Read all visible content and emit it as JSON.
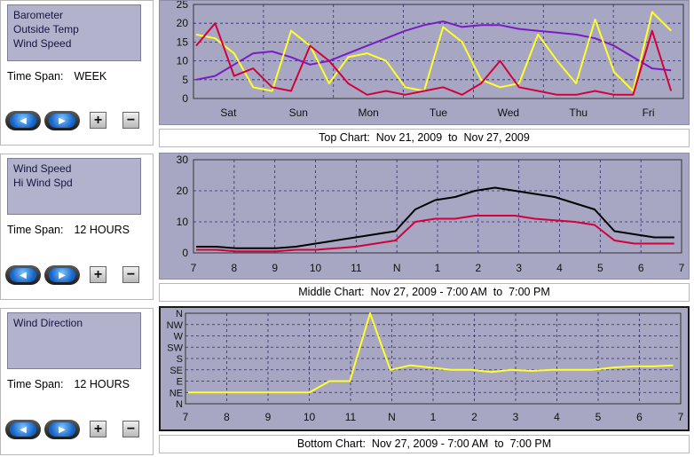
{
  "panels": [
    {
      "series": [
        "Barometer",
        "Outside Temp",
        "Wind Speed"
      ],
      "time_span_label": "Time Span:",
      "time_span_value": "WEEK",
      "caption": "Top Chart:  Nov 21, 2009  to  Nov 27, 2009"
    },
    {
      "series": [
        "Wind Speed",
        "Hi Wind Spd"
      ],
      "time_span_label": "Time Span:",
      "time_span_value": "12 HOURS",
      "caption": "Middle Chart:  Nov 27, 2009 - 7:00 AM  to  7:00 PM"
    },
    {
      "series": [
        "Wind Direction"
      ],
      "time_span_label": "Time Span:",
      "time_span_value": "12 HOURS",
      "caption": "Bottom Chart:  Nov 27, 2009 - 7:00 AM  to  7:00 PM"
    }
  ],
  "controls": {
    "plus": "+",
    "minus": "−"
  },
  "icons": [
    "back-arrow-icon",
    "forward-arrow-icon"
  ],
  "colors": {
    "plot_bg": "#a7a7c3",
    "barometer": "#7a1bc4",
    "outside_temp": "#ffff2a",
    "wind_speed": "#d3003c",
    "hi_wind_spd": "#000000",
    "wind_direction": "#ffff2a"
  },
  "chart_data": [
    {
      "type": "line",
      "x_labels": [
        "Sat",
        "Sun",
        "Mon",
        "Tue",
        "Wed",
        "Thu",
        "Fri"
      ],
      "y_ticks": [
        0,
        5,
        10,
        15,
        20,
        25
      ],
      "ylim": [
        0,
        25
      ],
      "grid": true,
      "series": [
        {
          "name": "Barometer",
          "values": [
            5,
            6,
            9,
            12,
            12.5,
            11,
            9,
            10,
            12,
            14,
            16,
            18,
            19.5,
            20.5,
            19,
            19.5,
            19.5,
            18.5,
            18,
            17.5,
            17,
            16,
            14,
            11,
            8,
            7.5
          ]
        },
        {
          "name": "Outside Temp",
          "values": [
            17,
            16,
            12,
            3,
            2,
            18,
            14,
            4,
            11,
            12,
            10,
            3,
            2,
            19,
            15,
            5,
            3,
            4,
            17,
            10,
            4,
            21,
            7,
            2,
            23,
            18
          ]
        },
        {
          "name": "Wind Speed",
          "values": [
            14,
            20,
            6,
            8,
            3,
            2,
            14,
            10,
            4,
            1,
            2,
            1,
            2,
            3,
            1,
            4,
            10,
            3,
            2,
            1,
            1,
            2,
            1,
            1,
            18,
            2
          ]
        }
      ]
    },
    {
      "type": "line",
      "x_labels": [
        "7",
        "8",
        "9",
        "10",
        "11",
        "N",
        "1",
        "2",
        "3",
        "4",
        "5",
        "6",
        "7"
      ],
      "y_ticks": [
        0,
        10,
        20,
        30
      ],
      "ylim": [
        0,
        30
      ],
      "grid": true,
      "series": [
        {
          "name": "Wind Speed",
          "values": [
            1,
            1,
            0.5,
            0.5,
            0.5,
            1,
            1,
            1.5,
            2,
            3,
            4,
            10,
            11,
            11,
            12,
            12,
            12,
            11,
            10.5,
            10,
            9,
            4,
            3,
            3,
            3
          ]
        },
        {
          "name": "Hi Wind Spd",
          "values": [
            2,
            2,
            1.5,
            1.5,
            1.5,
            2,
            3,
            4,
            5,
            6,
            7,
            14,
            17,
            18,
            20,
            21,
            20,
            19,
            18,
            16,
            14,
            7,
            6,
            5,
            5
          ]
        }
      ]
    },
    {
      "type": "line",
      "x_labels": [
        "7",
        "8",
        "9",
        "10",
        "11",
        "N",
        "1",
        "2",
        "3",
        "4",
        "5",
        "6",
        "7"
      ],
      "y_labels": [
        "N",
        "NW",
        "W",
        "SW",
        "S",
        "SE",
        "E",
        "NE",
        "N"
      ],
      "grid": true,
      "series": [
        {
          "name": "Wind Direction",
          "values": [
            7,
            7,
            7,
            7,
            7,
            7,
            7,
            6,
            6,
            0,
            5,
            4.6,
            4.8,
            5,
            5,
            5.2,
            5,
            5.1,
            5,
            5,
            5,
            4.8,
            4.7,
            4.7,
            4.6
          ]
        }
      ]
    }
  ]
}
